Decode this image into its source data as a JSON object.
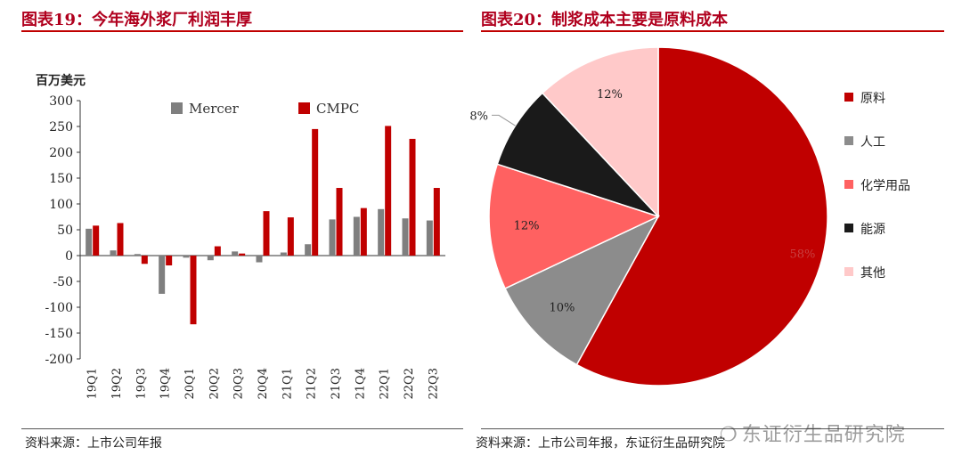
{
  "left": {
    "title": "图表19：今年海外浆厂利润丰厚",
    "source": "资料来源：上市公司年报"
  },
  "right": {
    "title": "图表20：制浆成本主要是原料成本",
    "source": "资料来源：上市公司年报，东证衍生品研究院"
  },
  "watermark": "东证衍生品研究院",
  "chart_data": [
    {
      "type": "bar",
      "ylabel": "百万美元",
      "ylim": [
        -200,
        300
      ],
      "yticks": [
        -200,
        -150,
        -100,
        -50,
        0,
        50,
        100,
        150,
        200,
        250,
        300
      ],
      "categories": [
        "19Q1",
        "19Q2",
        "19Q3",
        "19Q4",
        "20Q1",
        "20Q2",
        "20Q3",
        "20Q4",
        "21Q1",
        "21Q2",
        "21Q3",
        "21Q4",
        "22Q1",
        "22Q2",
        "22Q3"
      ],
      "legend_position": "top",
      "series": [
        {
          "name": "Mercer",
          "color": "#7f7f7f",
          "values": [
            52,
            10,
            3,
            -74,
            -4,
            -9,
            8,
            -13,
            6,
            22,
            70,
            75,
            90,
            72,
            68
          ]
        },
        {
          "name": "CMPC",
          "color": "#c00000",
          "values": [
            58,
            63,
            -16,
            -19,
            -133,
            18,
            4,
            86,
            74,
            245,
            131,
            92,
            251,
            226,
            131
          ]
        }
      ]
    },
    {
      "type": "pie",
      "legend_position": "right",
      "slices": [
        {
          "label": "原料",
          "value": 58,
          "display": "58%",
          "color": "#c00000"
        },
        {
          "label": "人工",
          "value": 10,
          "display": "10%",
          "color": "#8c8c8c"
        },
        {
          "label": "化学用品",
          "value": 12,
          "display": "12%",
          "color": "#ff6161"
        },
        {
          "label": "能源",
          "value": 8,
          "display": "8%",
          "color": "#1a1a1a"
        },
        {
          "label": "其他",
          "value": 12,
          "display": "12%",
          "color": "#ffc9c9"
        }
      ]
    }
  ]
}
